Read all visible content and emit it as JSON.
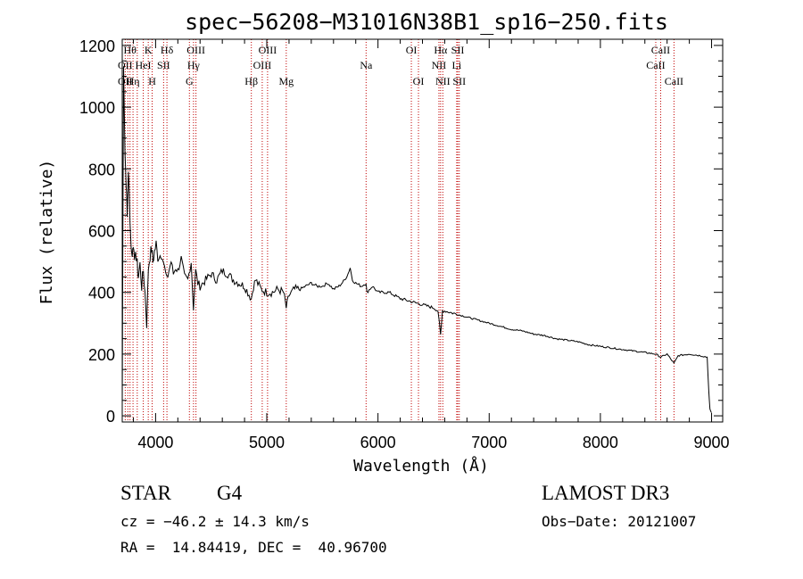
{
  "chart_data": {
    "type": "line",
    "title": "spec−56208−M31016N38B1_sp16−250.fits",
    "xlabel": "Wavelength (Å)",
    "ylabel": "Flux (relative)",
    "xlim": [
      3700,
      9100
    ],
    "ylim": [
      -20,
      1220
    ],
    "xticks": [
      4000,
      5000,
      6000,
      7000,
      8000,
      9000
    ],
    "yticks": [
      0,
      200,
      400,
      600,
      800,
      1000,
      1200
    ],
    "series": [
      {
        "name": "flux",
        "x": [
          3700,
          3712,
          3725,
          3735,
          3745,
          3755,
          3765,
          3775,
          3785,
          3795,
          3805,
          3815,
          3825,
          3835,
          3845,
          3860,
          3875,
          3890,
          3905,
          3920,
          3935,
          3950,
          3965,
          3975,
          3990,
          4005,
          4020,
          4040,
          4060,
          4080,
          4101,
          4120,
          4140,
          4160,
          4180,
          4200,
          4230,
          4260,
          4290,
          4320,
          4340,
          4360,
          4380,
          4400,
          4450,
          4500,
          4550,
          4600,
          4650,
          4700,
          4750,
          4800,
          4830,
          4861,
          4880,
          4900,
          4950,
          5000,
          5050,
          5100,
          5150,
          5175,
          5200,
          5250,
          5300,
          5350,
          5400,
          5450,
          5500,
          5550,
          5600,
          5650,
          5700,
          5730,
          5750,
          5770,
          5800,
          5850,
          5893,
          5900,
          5950,
          6000,
          6100,
          6200,
          6300,
          6400,
          6500,
          6540,
          6563,
          6580,
          6600,
          6700,
          6800,
          6900,
          7000,
          7100,
          7200,
          7300,
          7400,
          7500,
          7600,
          7700,
          7800,
          7900,
          8000,
          8100,
          8200,
          8300,
          8400,
          8498,
          8542,
          8600,
          8662,
          8700,
          8800,
          8900,
          8960,
          8975,
          8985,
          9000
        ],
        "values": [
          30,
          1150,
          850,
          760,
          640,
          800,
          700,
          590,
          520,
          540,
          550,
          500,
          520,
          490,
          450,
          490,
          420,
          470,
          400,
          300,
          480,
          520,
          540,
          500,
          530,
          560,
          510,
          520,
          520,
          480,
          440,
          470,
          500,
          460,
          480,
          470,
          510,
          450,
          440,
          500,
          350,
          470,
          430,
          420,
          440,
          460,
          440,
          470,
          460,
          440,
          430,
          420,
          400,
          380,
          420,
          440,
          410,
          400,
          400,
          410,
          400,
          350,
          390,
          410,
          410,
          420,
          430,
          420,
          420,
          430,
          410,
          420,
          440,
          460,
          480,
          440,
          430,
          420,
          430,
          400,
          420,
          400,
          400,
          380,
          370,
          360,
          350,
          340,
          260,
          340,
          340,
          330,
          320,
          310,
          300,
          290,
          280,
          275,
          265,
          260,
          250,
          245,
          240,
          230,
          225,
          220,
          215,
          210,
          205,
          200,
          190,
          200,
          170,
          195,
          200,
          195,
          190,
          80,
          20,
          10
        ]
      }
    ],
    "lines": [
      {
        "x": 3727,
        "label": "OII"
      },
      {
        "x": 3750,
        "label": "OII"
      },
      {
        "x": 3770,
        "label": "Hθ"
      },
      {
        "x": 3797,
        "label": "Hη"
      },
      {
        "x": 3835,
        "label": "Hη"
      },
      {
        "x": 3889,
        "label": "HeI"
      },
      {
        "x": 3934,
        "label": "K"
      },
      {
        "x": 3969,
        "label": "H"
      },
      {
        "x": 4072,
        "label": "SII"
      },
      {
        "x": 4102,
        "label": "Hδ"
      },
      {
        "x": 4304,
        "label": "G"
      },
      {
        "x": 4341,
        "label": "Hγ"
      },
      {
        "x": 4363,
        "label": "OIII"
      },
      {
        "x": 4861,
        "label": "Hβ"
      },
      {
        "x": 4959,
        "label": "OIII"
      },
      {
        "x": 5007,
        "label": "OIII"
      },
      {
        "x": 5175,
        "label": "Mg"
      },
      {
        "x": 5893,
        "label": "Na"
      },
      {
        "x": 6300,
        "label": "OI"
      },
      {
        "x": 6364,
        "label": "OI"
      },
      {
        "x": 6548,
        "label": "NII"
      },
      {
        "x": 6563,
        "label": "Hα"
      },
      {
        "x": 6583,
        "label": "NII"
      },
      {
        "x": 6708,
        "label": "Li"
      },
      {
        "x": 6717,
        "label": "SII"
      },
      {
        "x": 6731,
        "label": "SII"
      },
      {
        "x": 8498,
        "label": "CaII"
      },
      {
        "x": 8542,
        "label": "CaII"
      },
      {
        "x": 8662,
        "label": "CaII"
      }
    ],
    "line_labels": [
      {
        "text": "Hθ",
        "row": 0,
        "x": 3770
      },
      {
        "text": "K",
        "row": 0,
        "x": 3934
      },
      {
        "text": "Hδ",
        "row": 0,
        "x": 4102
      },
      {
        "text": "OIII",
        "row": 0,
        "x": 4363
      },
      {
        "text": "OIII",
        "row": 0,
        "x": 5007
      },
      {
        "text": "OI",
        "row": 0,
        "x": 6300
      },
      {
        "text": "Hα",
        "row": 0,
        "x": 6563
      },
      {
        "text": "SII",
        "row": 0,
        "x": 6717
      },
      {
        "text": "CaII",
        "row": 0,
        "x": 8542
      },
      {
        "text": "OII",
        "row": 1,
        "x": 3727
      },
      {
        "text": "HeI",
        "row": 1,
        "x": 3889
      },
      {
        "text": "SII",
        "row": 1,
        "x": 4072
      },
      {
        "text": "Hγ",
        "row": 1,
        "x": 4341
      },
      {
        "text": "OIII",
        "row": 1,
        "x": 4959
      },
      {
        "text": "Na",
        "row": 1,
        "x": 5893
      },
      {
        "text": "NII",
        "row": 1,
        "x": 6548
      },
      {
        "text": "Li",
        "row": 1,
        "x": 6708
      },
      {
        "text": "CaII",
        "row": 1,
        "x": 8498
      },
      {
        "text": "OII",
        "row": 2,
        "x": 3727
      },
      {
        "text": "Hη",
        "row": 2,
        "x": 3797
      },
      {
        "text": "H",
        "row": 2,
        "x": 3969
      },
      {
        "text": "G",
        "row": 2,
        "x": 4304
      },
      {
        "text": "Hβ",
        "row": 2,
        "x": 4861
      },
      {
        "text": "Mg",
        "row": 2,
        "x": 5175
      },
      {
        "text": "OI",
        "row": 2,
        "x": 6364
      },
      {
        "text": "NII",
        "row": 2,
        "x": 6583
      },
      {
        "text": "SII",
        "row": 2,
        "x": 6731
      },
      {
        "text": "CaII",
        "row": 2,
        "x": 8662
      }
    ],
    "colors": {
      "spectrum": "#000000",
      "lines": "#c00000",
      "axes": "#000000"
    }
  },
  "info": {
    "object_class": "STAR",
    "subclass": "G4",
    "redshift": "cz = −46.2 ± 14.3 km/s",
    "coords": "RA =  14.84419, DEC =  40.96700",
    "survey": "LAMOST DR3",
    "obs_date": "Obs−Date: 20121007"
  }
}
